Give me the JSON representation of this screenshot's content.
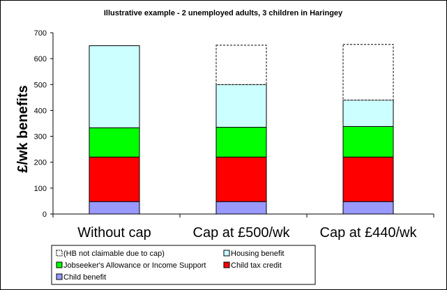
{
  "chart_data": {
    "type": "bar",
    "stacked": true,
    "title": "Illustrative example - 2 unemployed adults, 3 children in Haringey",
    "xlabel": "",
    "ylabel": "£/wk benefits",
    "ylim": [
      0,
      700
    ],
    "yticks": [
      0,
      100,
      200,
      300,
      400,
      500,
      600,
      700
    ],
    "grid": false,
    "legend_position": "bottom",
    "categories": [
      "Without cap",
      "Cap at £500/wk",
      "Cap at £440/wk"
    ],
    "series": [
      {
        "name": "Child benefit",
        "color": "#9999ff",
        "style": "solid",
        "values": [
          48,
          48,
          48
        ]
      },
      {
        "name": "Child tax credit",
        "color": "#ff0000",
        "style": "solid",
        "values": [
          172,
          172,
          172
        ]
      },
      {
        "name": "Jobseeker's Allowance or Income Support",
        "color": "#00ff00",
        "style": "solid",
        "values": [
          113,
          115,
          118
        ]
      },
      {
        "name": "Housing benefit",
        "color": "#ccffff",
        "style": "solid",
        "values": [
          317,
          165,
          102
        ]
      },
      {
        "name": "(HB not claimable due to cap)",
        "color": "#ffffff",
        "style": "dashed",
        "values": [
          0,
          152,
          215
        ]
      }
    ],
    "legend_order": [
      "(HB not claimable due to cap)",
      "Housing benefit",
      "Jobseeker's Allowance or Income Support",
      "Child tax credit",
      "Child benefit"
    ]
  }
}
